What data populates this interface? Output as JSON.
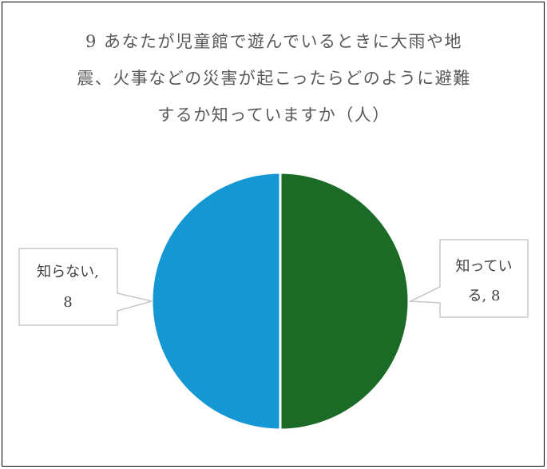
{
  "chart_data": {
    "type": "pie",
    "title_lines": [
      "9 あなたが児童館で遊んでいるときに大雨や地",
      "震、火事などの災害が起こったらどのように避難",
      "するか知っていますか（人）"
    ],
    "slices": [
      {
        "label": "知っている",
        "value": 8,
        "color": "#1b6b27",
        "label_lines": [
          "知ってい",
          "る, 8"
        ]
      },
      {
        "label": "知らない",
        "value": 8,
        "color": "#1497d3",
        "label_lines": [
          "知らない,",
          "8"
        ]
      }
    ],
    "legend": "none"
  }
}
